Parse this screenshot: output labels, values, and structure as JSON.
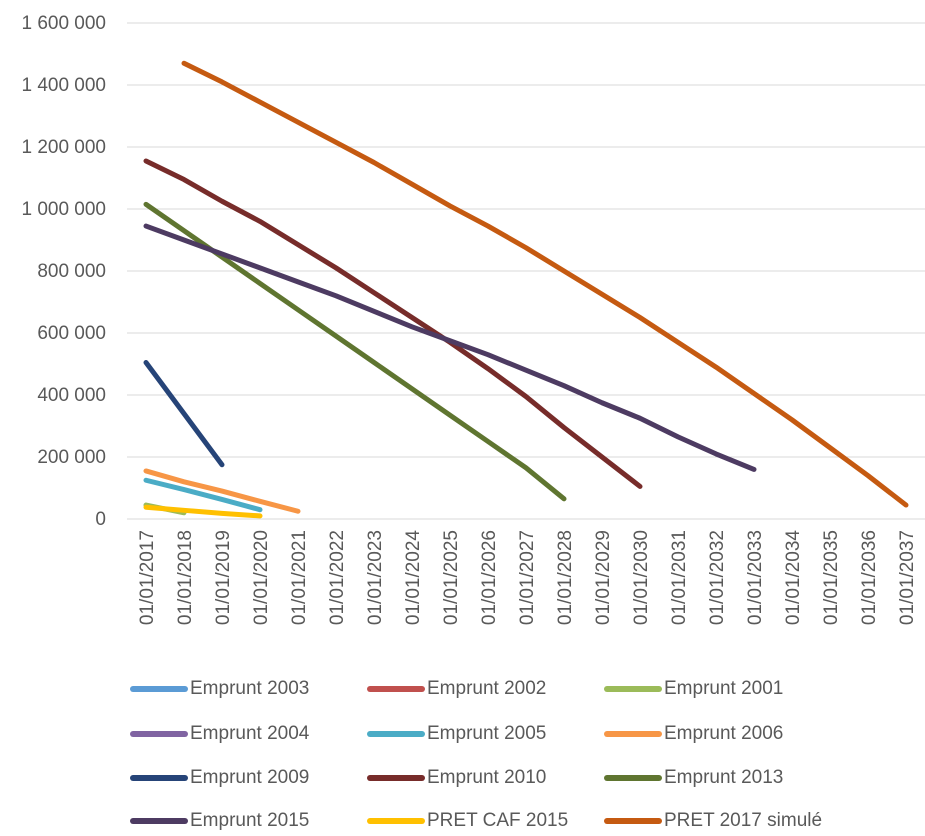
{
  "chart_data": {
    "type": "line",
    "title": "",
    "xlabel": "",
    "ylabel": "",
    "ylim": [
      0,
      1600000
    ],
    "yticks": [
      0,
      200000,
      400000,
      600000,
      800000,
      1000000,
      1200000,
      1400000,
      1600000
    ],
    "ytick_labels": [
      "0",
      "200 000",
      "400 000",
      "600 000",
      "800 000",
      "1 000 000",
      "1 200 000",
      "1 400 000",
      "1 600 000"
    ],
    "categories": [
      "01/01/2017",
      "01/01/2018",
      "01/01/2019",
      "01/01/2020",
      "01/01/2021",
      "01/01/2022",
      "01/01/2023",
      "01/01/2024",
      "01/01/2025",
      "01/01/2026",
      "01/01/2027",
      "01/01/2028",
      "01/01/2029",
      "01/01/2030",
      "01/01/2031",
      "01/01/2032",
      "01/01/2033",
      "01/01/2034",
      "01/01/2035",
      "01/01/2036",
      "01/01/2037"
    ],
    "grid": "horizontal",
    "legend_position": "bottom",
    "series": [
      {
        "name": "Emprunt 2003",
        "color": "#5B9BD5",
        "values": [
          null,
          null,
          null,
          null,
          null,
          null,
          null,
          null,
          null,
          null,
          null,
          null,
          null,
          null,
          null,
          null,
          null,
          null,
          null,
          null,
          null
        ]
      },
      {
        "name": "Emprunt 2002",
        "color": "#C0504D",
        "values": [
          null,
          null,
          null,
          null,
          null,
          null,
          null,
          null,
          null,
          null,
          null,
          null,
          null,
          null,
          null,
          null,
          null,
          null,
          null,
          null,
          null
        ]
      },
      {
        "name": "Emprunt 2001",
        "color": "#9BBB59",
        "values": [
          45000,
          20000,
          null,
          null,
          null,
          null,
          null,
          null,
          null,
          null,
          null,
          null,
          null,
          null,
          null,
          null,
          null,
          null,
          null,
          null,
          null
        ]
      },
      {
        "name": "Emprunt 2004",
        "color": "#8064A2",
        "values": [
          null,
          null,
          null,
          null,
          null,
          null,
          null,
          null,
          null,
          null,
          null,
          null,
          null,
          null,
          null,
          null,
          null,
          null,
          null,
          null,
          null
        ]
      },
      {
        "name": "Emprunt 2005",
        "color": "#4BACC6",
        "values": [
          125000,
          95000,
          63000,
          30000,
          null,
          null,
          null,
          null,
          null,
          null,
          null,
          null,
          null,
          null,
          null,
          null,
          null,
          null,
          null,
          null,
          null
        ]
      },
      {
        "name": "Emprunt 2006",
        "color": "#F79646",
        "values": [
          155000,
          120000,
          90000,
          57000,
          25000,
          null,
          null,
          null,
          null,
          null,
          null,
          null,
          null,
          null,
          null,
          null,
          null,
          null,
          null,
          null,
          null
        ]
      },
      {
        "name": "Emprunt 2009",
        "color": "#264478",
        "values": [
          505000,
          340000,
          175000,
          null,
          null,
          null,
          null,
          null,
          null,
          null,
          null,
          null,
          null,
          null,
          null,
          null,
          null,
          null,
          null,
          null,
          null
        ]
      },
      {
        "name": "Emprunt 2010",
        "color": "#772C2A",
        "values": [
          1155000,
          1095000,
          1025000,
          960000,
          885000,
          810000,
          730000,
          650000,
          570000,
          485000,
          395000,
          295000,
          200000,
          105000,
          null,
          null,
          null,
          null,
          null,
          null,
          null
        ]
      },
      {
        "name": "Emprunt 2013",
        "color": "#5F7530",
        "values": [
          1015000,
          930000,
          845000,
          760000,
          675000,
          590000,
          505000,
          420000,
          335000,
          250000,
          165000,
          65000,
          null,
          null,
          null,
          null,
          null,
          null,
          null,
          null,
          null
        ]
      },
      {
        "name": "Emprunt 2015",
        "color": "#4D3B62",
        "values": [
          945000,
          900000,
          855000,
          810000,
          765000,
          720000,
          670000,
          620000,
          575000,
          530000,
          480000,
          430000,
          375000,
          325000,
          265000,
          210000,
          160000,
          null,
          null,
          null,
          null
        ]
      },
      {
        "name": "PRET CAF 2015",
        "color": "#FFC000",
        "values": [
          38000,
          28000,
          18000,
          10000,
          null,
          null,
          null,
          null,
          null,
          null,
          null,
          null,
          null,
          null,
          null,
          null,
          null,
          null,
          null,
          null,
          null
        ]
      },
      {
        "name": "PRET 2017 simulé",
        "color": "#C55A11",
        "values": [
          null,
          1470000,
          1410000,
          1345000,
          1280000,
          1215000,
          1150000,
          1080000,
          1010000,
          945000,
          875000,
          800000,
          725000,
          650000,
          570000,
          490000,
          405000,
          320000,
          230000,
          140000,
          45000
        ]
      }
    ]
  }
}
